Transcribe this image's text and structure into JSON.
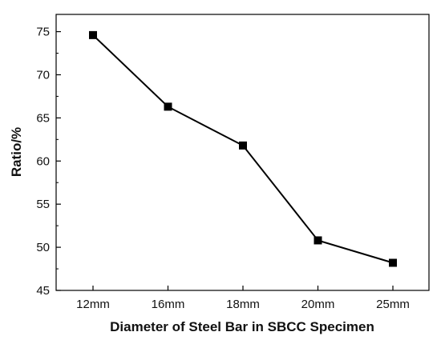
{
  "chart_data": {
    "type": "line",
    "title": "",
    "xlabel": "Diameter of Steel Bar in SBCC Specimen",
    "ylabel": "Ratio/%",
    "categories": [
      "12mm",
      "16mm",
      "18mm",
      "20mm",
      "25mm"
    ],
    "series": [
      {
        "name": "",
        "values": [
          74.6,
          66.3,
          61.8,
          50.8,
          48.2
        ]
      }
    ],
    "ylim": [
      45,
      77
    ],
    "yticks": [
      45,
      50,
      55,
      60,
      65,
      70,
      75
    ],
    "grid": false,
    "marker": "square",
    "colors": {
      "line": "#000000",
      "axis": "#000000",
      "background": "#ffffff"
    }
  }
}
